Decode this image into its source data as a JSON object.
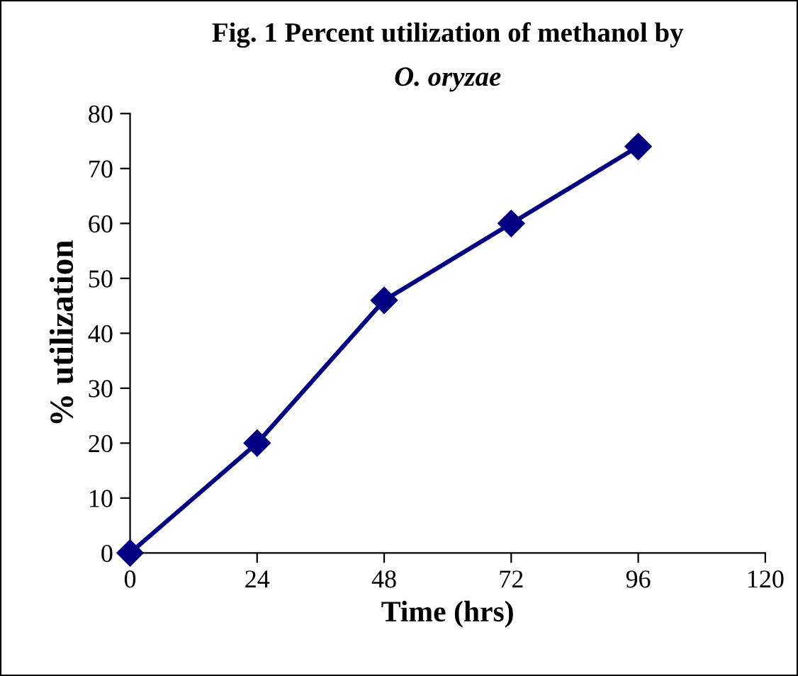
{
  "chart_data": {
    "type": "line",
    "title": "Fig. 1 Percent utilization of methanol by\nO. oryzae",
    "xlabel": "Time (hrs)",
    "ylabel": "% utilization",
    "x": [
      0,
      24,
      48,
      72,
      96
    ],
    "series": [
      {
        "color": "#000080",
        "values": [
          0,
          20,
          46,
          60,
          74
        ]
      }
    ],
    "xlim": [
      0,
      120
    ],
    "xticks": [
      0,
      24,
      48,
      72,
      96,
      120
    ],
    "ylim": [
      0,
      80
    ],
    "yticks": [
      0,
      10,
      20,
      30,
      40,
      50,
      60,
      70,
      80
    ],
    "marker": "diamond",
    "line_style": "solid",
    "grid": false,
    "legend": false
  }
}
